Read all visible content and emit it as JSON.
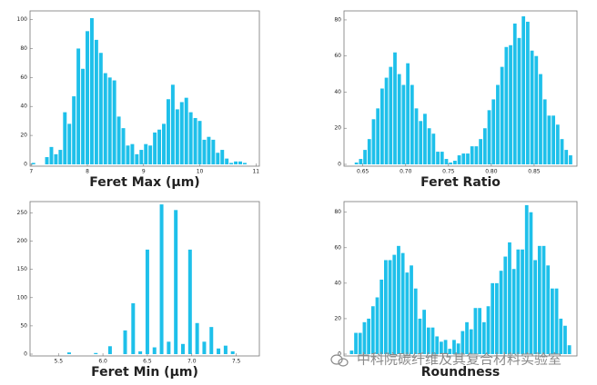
{
  "chart_data": [
    {
      "type": "histogram",
      "xlabel": "Feret Max (μm)",
      "color": "#1ec0ea",
      "bins": [
        7.0,
        7.08,
        7.16,
        7.24,
        7.32,
        7.4,
        7.48,
        7.56,
        7.64,
        7.72,
        7.8,
        7.88,
        7.96,
        8.04,
        8.12,
        8.2,
        8.28,
        8.36,
        8.44,
        8.52,
        8.6,
        8.68,
        8.76,
        8.84,
        8.92,
        9.0,
        9.08,
        9.16,
        9.24,
        9.32,
        9.4,
        9.48,
        9.56,
        9.64,
        9.72,
        9.8,
        9.88,
        9.96,
        10.04,
        10.12,
        10.2,
        10.28,
        10.36,
        10.44,
        10.52,
        10.6,
        10.68,
        10.76,
        10.84,
        10.92,
        11.0
      ],
      "values": [
        1,
        0,
        0,
        5,
        12,
        7,
        10,
        36,
        28,
        47,
        80,
        66,
        92,
        101,
        86,
        77,
        63,
        60,
        58,
        33,
        25,
        13,
        14,
        7,
        10,
        14,
        13,
        22,
        24,
        28,
        45,
        55,
        38,
        43,
        46,
        36,
        32,
        30,
        17,
        19,
        17,
        8,
        10,
        4,
        1,
        2,
        2,
        1,
        0,
        0
      ],
      "xlim": [
        6.98,
        11.06
      ],
      "xticks": [
        7,
        8,
        9,
        10,
        11
      ],
      "ylim": [
        0,
        106
      ],
      "yticks": [
        0,
        20,
        40,
        60,
        80,
        100
      ]
    },
    {
      "type": "histogram",
      "xlabel": "Feret Ratio",
      "color": "#1ec0ea",
      "bins": [
        0.64,
        0.645,
        0.65,
        0.655,
        0.66,
        0.665,
        0.67,
        0.675,
        0.68,
        0.685,
        0.69,
        0.695,
        0.7,
        0.705,
        0.71,
        0.715,
        0.72,
        0.725,
        0.73,
        0.735,
        0.74,
        0.745,
        0.75,
        0.755,
        0.76,
        0.765,
        0.77,
        0.775,
        0.78,
        0.785,
        0.79,
        0.795,
        0.8,
        0.805,
        0.81,
        0.815,
        0.82,
        0.825,
        0.83,
        0.835,
        0.84,
        0.845,
        0.85,
        0.855,
        0.86,
        0.865,
        0.87,
        0.875,
        0.88,
        0.885,
        0.89,
        0.895
      ],
      "values": [
        1,
        3,
        8,
        14,
        25,
        31,
        42,
        48,
        54,
        62,
        50,
        44,
        56,
        44,
        31,
        24,
        28,
        20,
        17,
        7,
        7,
        3,
        1,
        2,
        5,
        6,
        6,
        10,
        10,
        14,
        20,
        30,
        36,
        44,
        54,
        65,
        66,
        78,
        70,
        82,
        79,
        63,
        60,
        50,
        36,
        27,
        27,
        22,
        14,
        8,
        5
      ],
      "xlim": [
        0.628,
        0.9
      ],
      "xticks": [
        0.65,
        {
          "value": 0.7,
          "label": "0.70"
        },
        0.75,
        {
          "value": 0.8,
          "label": "0.80"
        },
        0.85
      ],
      "ylim": [
        0,
        85
      ],
      "yticks": [
        0,
        20,
        40,
        60,
        80
      ]
    },
    {
      "type": "bar",
      "xlabel": "Feret Min (μm)",
      "color": "#1ec0ea",
      "x": [
        5.62,
        5.92,
        6.08,
        6.25,
        6.34,
        6.42,
        6.5,
        6.58,
        6.66,
        6.74,
        6.82,
        6.9,
        6.98,
        7.06,
        7.14,
        7.22,
        7.3,
        7.38,
        7.46
      ],
      "values": [
        3,
        2,
        14,
        42,
        90,
        5,
        185,
        12,
        265,
        22,
        255,
        18,
        185,
        55,
        22,
        48,
        10,
        15,
        5
      ],
      "xlim": [
        5.18,
        7.76
      ],
      "xticks": [
        5.5,
        {
          "value": 6,
          "label": "6.0"
        },
        6.5,
        {
          "value": 7,
          "label": "7.0"
        },
        7.5
      ],
      "ylim": [
        0,
        270
      ],
      "yticks": [
        0,
        50,
        100,
        150,
        200,
        250
      ]
    },
    {
      "type": "bar",
      "xlabel": "Roundness",
      "color": "#1ec0ea",
      "categories": [
        null,
        null,
        null,
        null,
        null,
        null,
        null,
        null,
        null,
        null,
        null,
        null,
        null,
        null,
        null,
        null,
        null,
        null,
        null,
        null,
        null,
        null,
        null,
        null,
        null,
        null,
        null,
        null,
        null,
        null,
        null,
        null,
        null,
        null,
        null,
        null,
        null,
        null,
        null,
        null,
        null,
        null,
        null,
        null,
        null,
        null,
        null,
        null,
        null,
        null,
        null,
        null
      ],
      "values": [
        2,
        12,
        12,
        18,
        20,
        27,
        32,
        42,
        53,
        53,
        56,
        61,
        57,
        46,
        50,
        37,
        20,
        25,
        15,
        15,
        10,
        7,
        8,
        3,
        8,
        6,
        13,
        18,
        14,
        26,
        26,
        18,
        27,
        40,
        40,
        47,
        55,
        63,
        48,
        59,
        59,
        84,
        80,
        53,
        61,
        61,
        50,
        37,
        37,
        20,
        16,
        5
      ],
      "ylim": [
        0,
        86
      ],
      "yticks": [
        0,
        20,
        40,
        60,
        80
      ]
    }
  ],
  "watermark": "中科院碳纤维及其复合材料实验室"
}
